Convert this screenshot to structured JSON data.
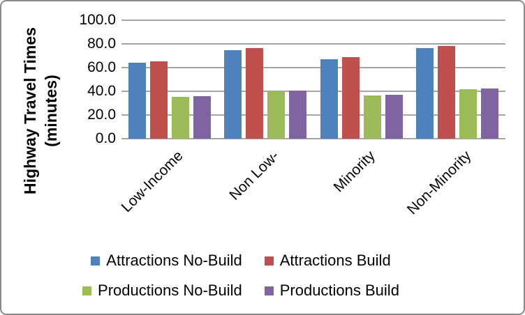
{
  "chart_data": {
    "type": "bar",
    "title": "",
    "ylabel_line1": "Highway Travel Times",
    "ylabel_line2": "(minutes)",
    "categories": [
      "Low-Income",
      "Non Low-",
      "Minority",
      "Non-Minority"
    ],
    "series": [
      {
        "name": "Attractions No-Build",
        "color": "#4F81BD",
        "values": [
          64.4,
          75.0,
          67.2,
          76.7
        ]
      },
      {
        "name": "Attractions Build",
        "color": "#C0504D",
        "values": [
          65.5,
          76.2,
          68.6,
          78.0
        ]
      },
      {
        "name": "Productions No-Build",
        "color": "#9BBB59",
        "values": [
          35.2,
          40.3,
          36.3,
          41.5
        ]
      },
      {
        "name": "Productions Build",
        "color": "#8064A2",
        "values": [
          35.8,
          40.8,
          36.9,
          42.1
        ]
      }
    ],
    "ylim": [
      0,
      100
    ],
    "ytick_step": 20,
    "yticks": [
      "100.0",
      "80.0",
      "60.0",
      "40.0",
      "20.0",
      "0.0"
    ],
    "grid": true,
    "gridline_color": "#a6a6a6",
    "legend_position": "bottom",
    "legend_rows": [
      [
        0,
        1
      ],
      [
        2,
        3
      ]
    ]
  }
}
